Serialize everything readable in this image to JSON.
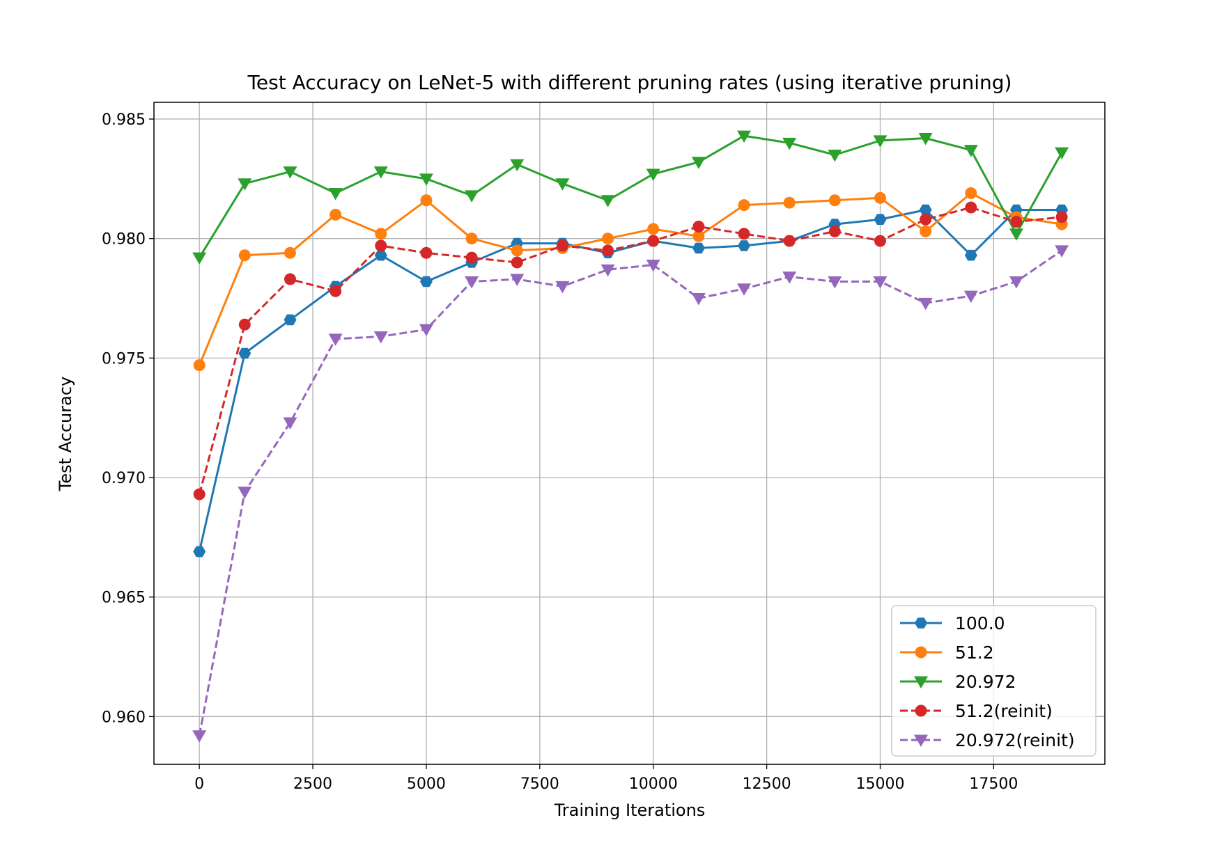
{
  "chart_data": {
    "type": "line",
    "title": "Test Accuracy on LeNet-5 with different pruning rates (using iterative pruning)",
    "xlabel": "Training Iterations",
    "ylabel": "Test Accuracy",
    "xlim": [
      -1000,
      19950
    ],
    "ylim": [
      0.958,
      0.9857
    ],
    "xticks": [
      0,
      2500,
      5000,
      7500,
      10000,
      12500,
      15000,
      17500
    ],
    "xtick_labels": [
      "0",
      "2500",
      "5000",
      "7500",
      "10000",
      "12500",
      "15000",
      "17500"
    ],
    "yticks": [
      0.96,
      0.965,
      0.97,
      0.975,
      0.98,
      0.985
    ],
    "ytick_labels": [
      "0.960",
      "0.965",
      "0.970",
      "0.975",
      "0.980",
      "0.985"
    ],
    "grid": true,
    "legend_position": "lower-right",
    "x": [
      0,
      1000,
      2000,
      3000,
      4000,
      5000,
      6000,
      7000,
      8000,
      9000,
      10000,
      11000,
      12000,
      13000,
      14000,
      15000,
      16000,
      17000,
      18000,
      19000
    ],
    "series": [
      {
        "name": "100.0",
        "color": "#1f77b4",
        "marker": "hexagon",
        "dashed": false,
        "values": [
          0.9669,
          0.9752,
          0.9766,
          0.978,
          0.9793,
          0.9782,
          0.979,
          0.9798,
          0.9798,
          0.9794,
          0.9799,
          0.9796,
          0.9797,
          0.9799,
          0.9806,
          0.9808,
          0.9812,
          0.9793,
          0.9812,
          0.9812
        ]
      },
      {
        "name": "51.2",
        "color": "#ff7f0e",
        "marker": "circle",
        "dashed": false,
        "values": [
          0.9747,
          0.9793,
          0.9794,
          0.981,
          0.9802,
          0.9816,
          0.98,
          0.9795,
          0.9796,
          0.98,
          0.9804,
          0.9801,
          0.9814,
          0.9815,
          0.9816,
          0.9817,
          0.9803,
          0.9819,
          0.9809,
          0.9806
        ]
      },
      {
        "name": "20.972",
        "color": "#2ca02c",
        "marker": "triangle-down",
        "dashed": false,
        "values": [
          0.9792,
          0.9823,
          0.9828,
          0.9819,
          0.9828,
          0.9825,
          0.9818,
          0.9831,
          0.9823,
          0.9816,
          0.9827,
          0.9832,
          0.9843,
          0.984,
          0.9835,
          0.9841,
          0.9842,
          0.9837,
          0.9802,
          0.9836
        ]
      },
      {
        "name": "51.2(reinit)",
        "color": "#d62728",
        "marker": "circle",
        "dashed": true,
        "values": [
          0.9693,
          0.9764,
          0.9783,
          0.9778,
          0.9797,
          0.9794,
          0.9792,
          0.979,
          0.9797,
          0.9795,
          0.9799,
          0.9805,
          0.9802,
          0.9799,
          0.9803,
          0.9799,
          0.9808,
          0.9813,
          0.9807,
          0.9809
        ]
      },
      {
        "name": "20.972(reinit)",
        "color": "#9467bd",
        "marker": "triangle-down",
        "dashed": true,
        "values": [
          0.9592,
          0.9694,
          0.9723,
          0.9758,
          0.9759,
          0.9762,
          0.9782,
          0.9783,
          0.978,
          0.9787,
          0.9789,
          0.9775,
          0.9779,
          0.9784,
          0.9782,
          0.9782,
          0.9773,
          0.9776,
          0.9782,
          0.9795
        ]
      }
    ]
  }
}
